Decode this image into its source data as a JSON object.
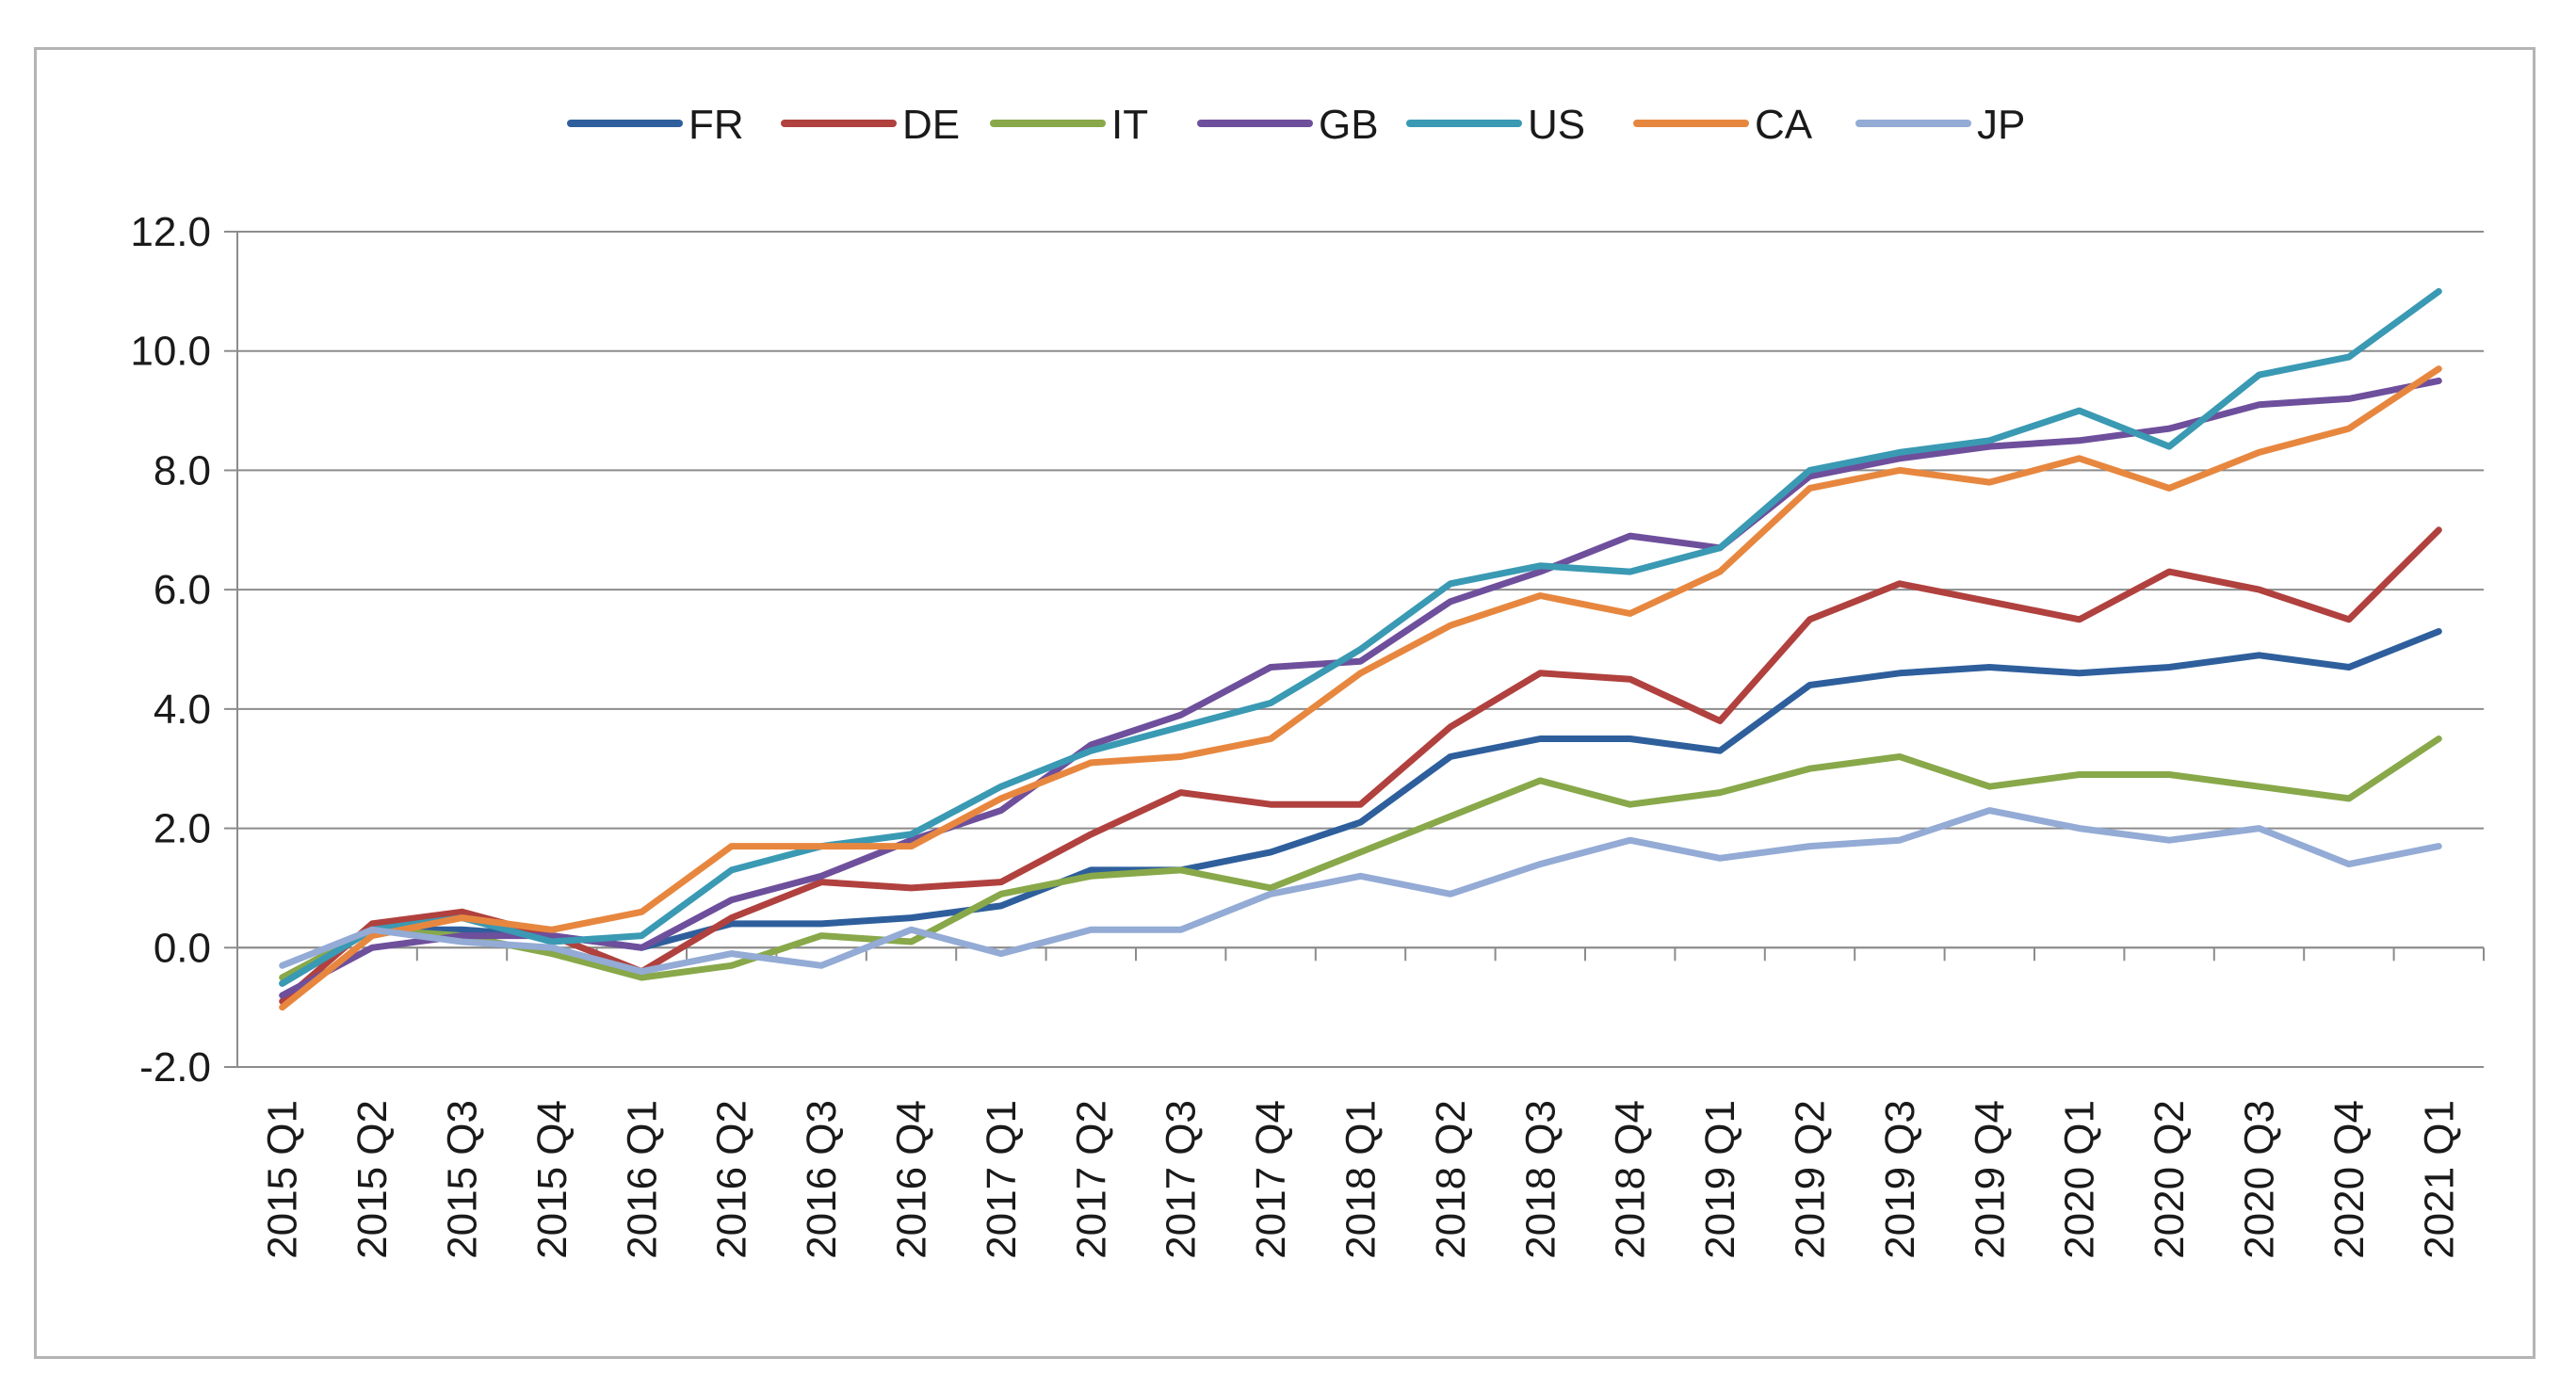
{
  "chart_data": {
    "type": "line",
    "title": "",
    "xlabel": "",
    "ylabel": "",
    "ylim": [
      -2.0,
      12.0
    ],
    "yticks": [
      "12.0",
      "10.0",
      "8.0",
      "6.0",
      "4.0",
      "2.0",
      "0.0",
      "-2.0"
    ],
    "ytick_values": [
      12,
      10,
      8,
      6,
      4,
      2,
      0,
      -2
    ],
    "grid": true,
    "legend_position": "top",
    "categories": [
      "2015 Q1",
      "2015 Q2",
      "2015 Q3",
      "2015 Q4",
      "2016 Q1",
      "2016 Q2",
      "2016 Q3",
      "2016 Q4",
      "2017 Q1",
      "2017 Q2",
      "2017 Q3",
      "2017 Q4",
      "2018 Q1",
      "2018 Q2",
      "2018 Q3",
      "2018 Q4",
      "2019 Q1",
      "2019 Q2",
      "2019 Q3",
      "2019 Q4",
      "2020 Q1",
      "2020 Q2",
      "2020 Q3",
      "2020 Q4",
      "2021 Q1"
    ],
    "series": [
      {
        "name": "FR",
        "color": "#2e5f9c",
        "values": [
          -0.6,
          0.3,
          0.3,
          0.2,
          0.0,
          0.4,
          0.4,
          0.5,
          0.7,
          1.3,
          1.3,
          1.6,
          2.1,
          3.2,
          3.5,
          3.5,
          3.3,
          4.4,
          4.6,
          4.7,
          4.6,
          4.7,
          4.9,
          4.7,
          5.3
        ]
      },
      {
        "name": "DE",
        "color": "#b0413e",
        "values": [
          -0.9,
          0.4,
          0.6,
          0.2,
          -0.4,
          0.5,
          1.1,
          1.0,
          1.1,
          1.9,
          2.6,
          2.4,
          2.4,
          3.7,
          4.6,
          4.5,
          3.8,
          5.5,
          6.1,
          5.8,
          5.5,
          6.3,
          6.0,
          5.5,
          7.0
        ]
      },
      {
        "name": "IT",
        "color": "#88a84a",
        "values": [
          -0.5,
          0.3,
          0.2,
          -0.1,
          -0.5,
          -0.3,
          0.2,
          0.1,
          0.9,
          1.2,
          1.3,
          1.0,
          1.6,
          2.2,
          2.8,
          2.4,
          2.6,
          3.0,
          3.2,
          2.7,
          2.9,
          2.9,
          2.7,
          2.5,
          3.5
        ]
      },
      {
        "name": "GB",
        "color": "#6e4f9c",
        "values": [
          -0.8,
          0.0,
          0.2,
          0.2,
          0.0,
          0.8,
          1.2,
          1.8,
          2.3,
          3.4,
          3.9,
          4.7,
          4.8,
          5.8,
          6.3,
          6.9,
          6.7,
          7.9,
          8.2,
          8.4,
          8.5,
          8.7,
          9.1,
          9.2,
          9.5
        ]
      },
      {
        "name": "US",
        "color": "#3a99b3",
        "values": [
          -0.6,
          0.3,
          0.5,
          0.1,
          0.2,
          1.3,
          1.7,
          1.9,
          2.7,
          3.3,
          3.7,
          4.1,
          5.0,
          6.1,
          6.4,
          6.3,
          6.7,
          8.0,
          8.3,
          8.5,
          9.0,
          8.4,
          9.6,
          9.9,
          11.0
        ]
      },
      {
        "name": "CA",
        "color": "#e7873f",
        "values": [
          -1.0,
          0.2,
          0.5,
          0.3,
          0.6,
          1.7,
          1.7,
          1.7,
          2.5,
          3.1,
          3.2,
          3.5,
          4.6,
          5.4,
          5.9,
          5.6,
          6.3,
          7.7,
          8.0,
          7.8,
          8.2,
          7.7,
          8.3,
          8.7,
          9.7
        ]
      },
      {
        "name": "JP",
        "color": "#93abd5",
        "values": [
          -0.3,
          0.3,
          0.1,
          0.0,
          -0.4,
          -0.1,
          -0.3,
          0.3,
          -0.1,
          0.3,
          0.3,
          0.9,
          1.2,
          0.9,
          1.4,
          1.8,
          1.5,
          1.7,
          1.8,
          2.3,
          2.0,
          1.8,
          2.0,
          1.4,
          1.7
        ]
      }
    ]
  }
}
